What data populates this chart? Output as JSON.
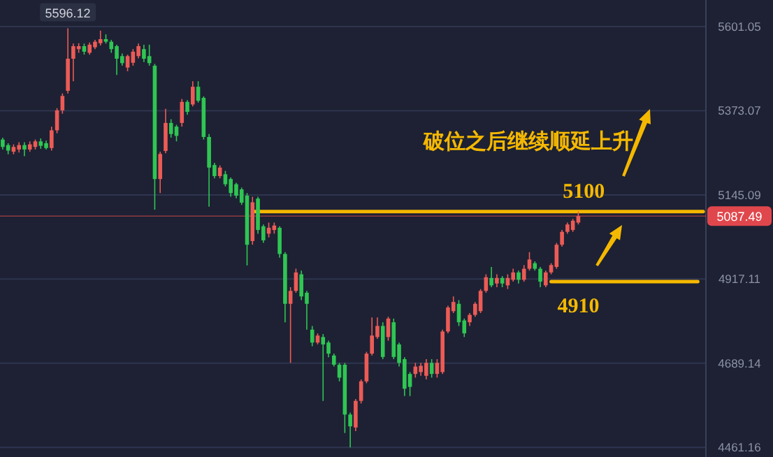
{
  "chart_data": {
    "type": "candlestick",
    "categories": [
      null,
      null,
      null,
      null,
      null,
      null,
      null,
      null,
      null,
      null,
      null,
      null,
      null,
      null,
      null,
      null,
      null,
      null,
      null,
      null,
      null,
      null,
      null,
      null,
      null,
      null,
      null,
      null,
      null,
      null,
      null,
      null,
      null,
      null,
      null,
      null,
      null,
      null,
      null,
      null,
      null,
      null,
      null,
      null,
      null,
      null,
      null,
      null,
      null,
      null,
      null,
      null,
      null,
      null,
      null,
      null,
      null,
      null,
      null,
      null,
      null,
      null,
      null,
      null,
      null,
      null,
      null,
      null,
      null,
      null,
      null,
      null,
      null,
      null,
      null,
      null,
      null,
      null,
      null,
      null,
      null,
      null,
      null,
      null,
      null,
      null,
      null,
      null,
      null,
      null,
      null,
      null,
      null,
      null,
      null,
      null,
      null,
      null,
      null,
      null,
      null,
      null,
      null,
      null,
      null,
      null,
      null,
      null,
      null,
      null,
      null,
      null,
      null,
      null,
      null,
      null,
      null,
      null,
      null,
      null,
      null,
      null,
      null,
      null,
      null,
      null,
      null,
      null,
      null,
      null
    ],
    "ohlc": [
      [
        5295,
        5300,
        5268,
        5275
      ],
      [
        5280,
        5285,
        5255,
        5265
      ],
      [
        5262,
        5282,
        5255,
        5275
      ],
      [
        5268,
        5288,
        5260,
        5280
      ],
      [
        5280,
        5288,
        5250,
        5268
      ],
      [
        5268,
        5290,
        5262,
        5282
      ],
      [
        5275,
        5295,
        5268,
        5290
      ],
      [
        5290,
        5298,
        5270,
        5278
      ],
      [
        5285,
        5292,
        5268,
        5272
      ],
      [
        5272,
        5330,
        5265,
        5320
      ],
      [
        5320,
        5380,
        5312,
        5374
      ],
      [
        5374,
        5420,
        5365,
        5413
      ],
      [
        5427,
        5596.12,
        5420,
        5514
      ],
      [
        5514,
        5555,
        5453,
        5548
      ],
      [
        5540,
        5556,
        5530,
        5548
      ],
      [
        5548,
        5555,
        5525,
        5533
      ],
      [
        5530,
        5558,
        5525,
        5552
      ],
      [
        5545,
        5565,
        5540,
        5560
      ],
      [
        5556,
        5590,
        5550,
        5567
      ],
      [
        5567,
        5580,
        5555,
        5560
      ],
      [
        5560,
        5565,
        5530,
        5540
      ],
      [
        5548,
        5552,
        5470,
        5514
      ],
      [
        5521,
        5528,
        5495,
        5502
      ],
      [
        5490,
        5525,
        5480,
        5521
      ],
      [
        5503,
        5540,
        5495,
        5533
      ],
      [
        5521,
        5555,
        5515,
        5548
      ],
      [
        5540,
        5552,
        5505,
        5514
      ],
      [
        5521,
        5552,
        5495,
        5502
      ],
      [
        5495,
        5500,
        5105,
        5188
      ],
      [
        5188,
        5262,
        5150,
        5256
      ],
      [
        5264,
        5378,
        5258,
        5340
      ],
      [
        5340,
        5350,
        5300,
        5310
      ],
      [
        5330,
        5335,
        5290,
        5305
      ],
      [
        5340,
        5405,
        5330,
        5397
      ],
      [
        5397,
        5402,
        5362,
        5370
      ],
      [
        5390,
        5453,
        5385,
        5438
      ],
      [
        5438,
        5453,
        5395,
        5400
      ],
      [
        5408,
        5412,
        5295,
        5302
      ],
      [
        5302,
        5310,
        5113,
        5219
      ],
      [
        5226,
        5232,
        5190,
        5196
      ],
      [
        5196,
        5225,
        5190,
        5219
      ],
      [
        5201,
        5210,
        5168,
        5174
      ],
      [
        5188,
        5192,
        5140,
        5150
      ],
      [
        5174,
        5178,
        5136,
        5143
      ],
      [
        5160,
        5165,
        5118,
        5124
      ],
      [
        5143,
        5150,
        4954,
        5010
      ],
      [
        5020,
        5140,
        5010,
        5125
      ],
      [
        5135,
        5140,
        5040,
        5050
      ],
      [
        5060,
        5065,
        5015,
        5022
      ],
      [
        5040,
        5070,
        5030,
        5056
      ],
      [
        5050,
        5070,
        5040,
        5062
      ],
      [
        5056,
        5060,
        4975,
        4985
      ],
      [
        4985,
        4990,
        4800,
        4850
      ],
      [
        4850,
        4895,
        4690,
        4885
      ],
      [
        4885,
        4945,
        4880,
        4935
      ],
      [
        4930,
        4940,
        4860,
        4870
      ],
      [
        4880,
        4885,
        4780,
        4850
      ],
      [
        4780,
        4790,
        4735,
        4745
      ],
      [
        4745,
        4770,
        4740,
        4764
      ],
      [
        4760,
        4768,
        4587,
        4740
      ],
      [
        4745,
        4750,
        4705,
        4715
      ],
      [
        4710,
        4715,
        4680,
        4685
      ],
      [
        4685,
        4690,
        4640,
        4650
      ],
      [
        4685,
        4690,
        4500,
        4550
      ],
      [
        4550,
        4555,
        4461,
        4518
      ],
      [
        4515,
        4592,
        4505,
        4587
      ],
      [
        4587,
        4645,
        4580,
        4640
      ],
      [
        4640,
        4720,
        4635,
        4715
      ],
      [
        4715,
        4813,
        4710,
        4764
      ],
      [
        4760,
        4813,
        4755,
        4790
      ],
      [
        4790,
        4800,
        4700,
        4706
      ],
      [
        4760,
        4815,
        4750,
        4810
      ],
      [
        4800,
        4810,
        4700,
        4706
      ],
      [
        4740,
        4745,
        4680,
        4690
      ],
      [
        4700,
        4705,
        4600,
        4620
      ],
      [
        4660,
        4665,
        4600,
        4625
      ],
      [
        4660,
        4690,
        4650,
        4680
      ],
      [
        4665,
        4690,
        4655,
        4682
      ],
      [
        4655,
        4700,
        4645,
        4690
      ],
      [
        4690,
        4700,
        4650,
        4660
      ],
      [
        4660,
        4700,
        4650,
        4690
      ],
      [
        4665,
        4780,
        4660,
        4775
      ],
      [
        4775,
        4845,
        4770,
        4840
      ],
      [
        4830,
        4870,
        4825,
        4855
      ],
      [
        4850,
        4860,
        4790,
        4800
      ],
      [
        4805,
        4810,
        4760,
        4770
      ],
      [
        4800,
        4825,
        4790,
        4820
      ],
      [
        4820,
        4855,
        4815,
        4850
      ],
      [
        4830,
        4890,
        4825,
        4885
      ],
      [
        4885,
        4930,
        4880,
        4922
      ],
      [
        4920,
        4950,
        4895,
        4900
      ],
      [
        4905,
        4930,
        4895,
        4920
      ],
      [
        4920,
        4925,
        4895,
        4905
      ],
      [
        4900,
        4930,
        4890,
        4920
      ],
      [
        4915,
        4945,
        4910,
        4935
      ],
      [
        4935,
        4940,
        4905,
        4915
      ],
      [
        4915,
        4955,
        4910,
        4945
      ],
      [
        4945,
        4990,
        4940,
        4970
      ],
      [
        4960,
        4965,
        4940,
        4945
      ],
      [
        4945,
        4950,
        4895,
        4910
      ],
      [
        4900,
        4940,
        4895,
        4935
      ],
      [
        4935,
        4960,
        4930,
        4955
      ],
      [
        4950,
        5015,
        4945,
        5010
      ],
      [
        5010,
        5050,
        5005,
        5045
      ],
      [
        5045,
        5070,
        5040,
        5065
      ],
      [
        5050,
        5080,
        5045,
        5075
      ],
      [
        5070,
        5100,
        5065,
        5087.49
      ],
      null,
      null,
      null,
      null,
      null,
      null,
      null,
      null,
      null,
      null,
      null,
      null,
      null,
      null,
      null,
      null,
      null,
      null,
      null,
      null,
      null,
      null,
      null
    ],
    "series": [
      {
        "type": "line",
        "name": "5100",
        "color": "#f5b800",
        "values": [
          null,
          null,
          null,
          null,
          null,
          null,
          null,
          null,
          null,
          null,
          null,
          null,
          null,
          null,
          null,
          null,
          null,
          null,
          null,
          null,
          null,
          null,
          null,
          null,
          null,
          null,
          null,
          null,
          null,
          null,
          null,
          null,
          null,
          null,
          null,
          null,
          null,
          null,
          null,
          null,
          null,
          null,
          null,
          null,
          null,
          null,
          5100,
          5100,
          5100,
          5100,
          5100,
          5100,
          5100,
          5100,
          5100,
          5100,
          5100,
          5100,
          5100,
          5100,
          5100,
          5100,
          5100,
          5100,
          5100,
          5100,
          5100,
          5100,
          5100,
          5100,
          5100,
          5100,
          5100,
          5100,
          5100,
          5100,
          5100,
          5100,
          5100,
          5100,
          5100,
          5100,
          5100,
          5100,
          5100,
          5100,
          5100,
          5100,
          5100,
          5100,
          5100,
          5100,
          5100,
          5100,
          5100,
          5100,
          5100,
          5100,
          5100,
          5100,
          5100,
          5100,
          5100,
          5100,
          5100,
          5100,
          5100,
          5100,
          5100,
          5100,
          5100,
          5100,
          5100,
          5100,
          5100,
          5100,
          5100,
          5100,
          5100,
          5100,
          5100,
          5100,
          5100,
          5100,
          5100,
          5100,
          5100,
          5100,
          5100,
          5100
        ]
      },
      {
        "type": "line",
        "name": "4910",
        "color": "#f5b800",
        "values": [
          null,
          null,
          null,
          null,
          null,
          null,
          null,
          null,
          null,
          null,
          null,
          null,
          null,
          null,
          null,
          null,
          null,
          null,
          null,
          null,
          null,
          null,
          null,
          null,
          null,
          null,
          null,
          null,
          null,
          null,
          null,
          null,
          null,
          null,
          null,
          null,
          null,
          null,
          null,
          null,
          null,
          null,
          null,
          null,
          null,
          null,
          null,
          null,
          null,
          null,
          null,
          null,
          null,
          null,
          null,
          null,
          null,
          null,
          null,
          null,
          null,
          null,
          null,
          null,
          null,
          null,
          null,
          null,
          null,
          null,
          null,
          null,
          null,
          null,
          null,
          null,
          null,
          null,
          null,
          null,
          null,
          null,
          null,
          null,
          null,
          null,
          null,
          null,
          null,
          null,
          null,
          null,
          null,
          null,
          null,
          null,
          null,
          null,
          null,
          null,
          null,
          4910,
          4910,
          4910,
          4910,
          4910,
          4910,
          4910,
          4910,
          4910,
          4910,
          4910,
          4910,
          4910,
          4910,
          4910,
          4910,
          4910,
          4910,
          4910,
          4910,
          4910,
          4910,
          4910,
          4910,
          4910,
          4910,
          4910,
          4910,
          null
        ]
      }
    ],
    "ylim": [
      4435,
      5673
    ],
    "yticks": [
      4461.16,
      4689.14,
      4917.11,
      5145.09,
      5373.07,
      5601.05
    ],
    "grid": "y",
    "ref_lines": [
      {
        "axis": "y",
        "value": 5087.49,
        "label": "5087.49",
        "color": "#e0474c"
      }
    ],
    "annotations": [
      "破位之后继续顺延上升",
      {
        "text": "5596.12",
        "y": 5596.12
      }
    ]
  }
}
